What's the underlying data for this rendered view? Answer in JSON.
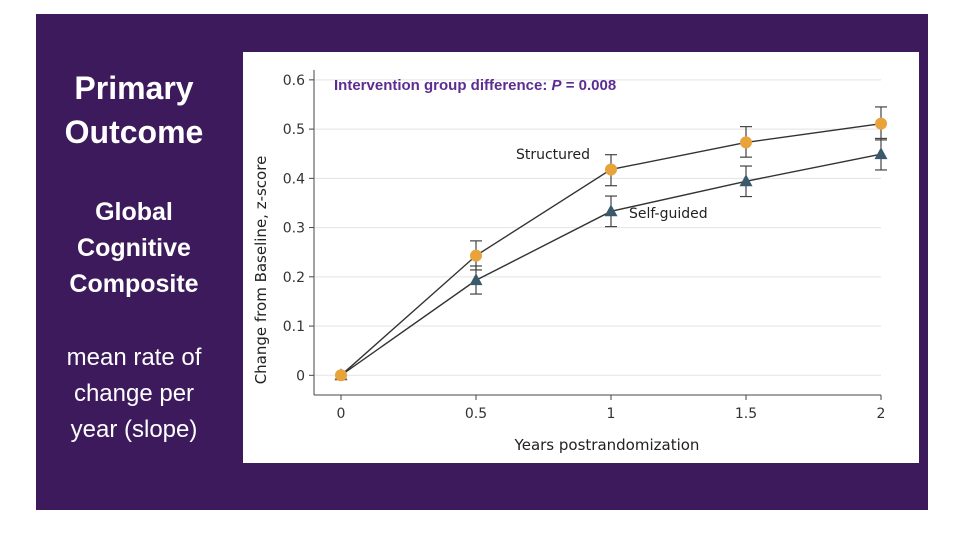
{
  "slide": {
    "title_line1": "Primary",
    "title_line2": "Outcome",
    "subtitle_line1": "Global",
    "subtitle_line2": "Cognitive",
    "subtitle_line3": "Composite",
    "note_line1": "mean rate of",
    "note_line2": "change per",
    "note_line3": "year (slope)",
    "background_color": "#3d1a5c"
  },
  "chart_data": {
    "type": "line",
    "annotation_prefix": "Intervention group difference: ",
    "annotation_p": "P",
    "annotation_suffix": " = 0.008",
    "annotation_color": "#5c2d91",
    "xlabel": "Years postrandomization",
    "ylabel": "Change from Baseline, z-score",
    "xlim": [
      -0.1,
      2.0
    ],
    "ylim": [
      -0.04,
      0.62
    ],
    "x_ticks": [
      0,
      0.5,
      1,
      1.5,
      2
    ],
    "x_tick_labels": [
      "0",
      "0.5",
      "1",
      "1.5",
      "2"
    ],
    "y_ticks": [
      0,
      0.1,
      0.2,
      0.3,
      0.4,
      0.5,
      0.6
    ],
    "y_tick_labels": [
      "0",
      "0.1",
      "0.2",
      "0.3",
      "0.4",
      "0.5",
      "0.6"
    ],
    "grid": true,
    "series": [
      {
        "name": "Structured",
        "label": "Structured",
        "color": "#e8a33a",
        "marker": "circle",
        "x": [
          0,
          0.5,
          1,
          1.5,
          2
        ],
        "y": [
          0.0,
          0.243,
          0.418,
          0.473,
          0.511
        ],
        "ci_low": [
          0.0,
          0.214,
          0.385,
          0.443,
          0.478
        ],
        "ci_high": [
          0.0,
          0.273,
          0.448,
          0.505,
          0.545
        ]
      },
      {
        "name": "Self-guided",
        "label": "Self-guided",
        "color": "#3a5a6b",
        "marker": "triangle",
        "x": [
          0,
          0.5,
          1,
          1.5,
          2
        ],
        "y": [
          0.0,
          0.193,
          0.333,
          0.394,
          0.449
        ],
        "ci_low": [
          0.0,
          0.165,
          0.302,
          0.363,
          0.417
        ],
        "ci_high": [
          0.0,
          0.222,
          0.364,
          0.425,
          0.481
        ]
      }
    ]
  }
}
